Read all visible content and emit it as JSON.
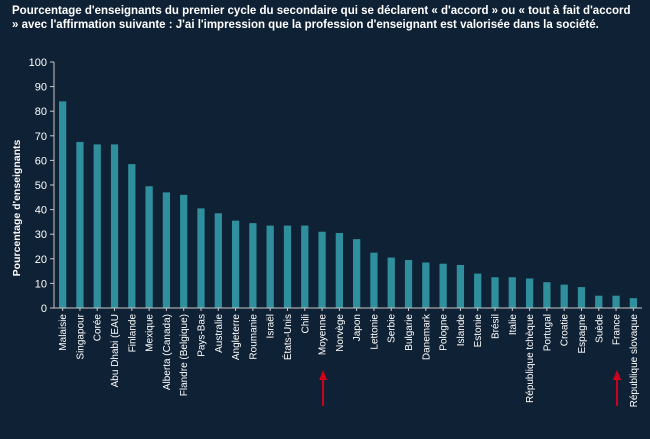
{
  "chart_data": {
    "type": "bar",
    "title": "Pourcentage d'enseignants du premier cycle du secondaire qui se déclarent « d'accord » ou « tout à fait d'accord » avec l'affirmation suivante : J'ai l'impression que la profession d'enseignant est valorisée dans la société.",
    "ylabel": "Pourcentage d'enseignants",
    "xlabel": "",
    "ylim": [
      0,
      100
    ],
    "yticks": [
      0,
      10,
      20,
      30,
      40,
      50,
      60,
      70,
      80,
      90,
      100
    ],
    "grid": false,
    "bar_color": "#2f8f9d",
    "highlight_color": "#d0021b",
    "categories": [
      "Malaisie",
      "Singapour",
      "Corée",
      "Abu Dhabi (EAU",
      "Finlande",
      "Mexique",
      "Alberta (Canada)",
      "Flandre (Belgique)",
      "Pays-Bas",
      "Australie",
      "Angleterre",
      "Roumanie",
      "Israël",
      "États-Unis",
      "Chili",
      "Moyenne",
      "Norvège",
      "Japon",
      "Lettonie",
      "Serbie",
      "Bulgarie",
      "Danemark",
      "Pologne",
      "Islande",
      "Estonie",
      "Brésil",
      "Italie",
      "République tchèque",
      "Portugal",
      "Croatie",
      "Espagne",
      "Suède",
      "France",
      "République slovaque"
    ],
    "values": [
      84,
      67.5,
      66.5,
      66.5,
      58.5,
      49.5,
      47,
      46,
      40.5,
      38.5,
      35.5,
      34.5,
      33.5,
      33.5,
      33.5,
      31,
      30.5,
      28,
      22.5,
      20.5,
      19.5,
      18.5,
      18,
      17.5,
      14,
      12.5,
      12.5,
      12,
      10.5,
      9.5,
      8.5,
      5,
      5,
      4
    ],
    "highlighted": [
      "Moyenne",
      "France"
    ]
  }
}
